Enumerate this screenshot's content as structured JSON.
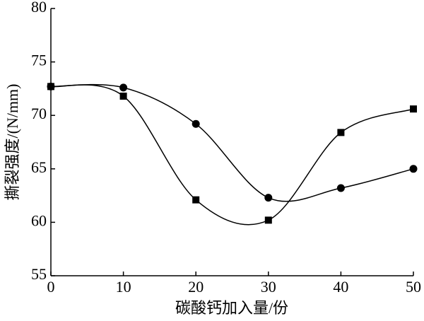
{
  "chart_data": {
    "type": "line",
    "x_label": "碳酸钙加入量/份",
    "y_label": "撕裂强度/(N/mm)",
    "x": [
      0,
      10,
      20,
      30,
      40,
      50
    ],
    "series": [
      {
        "color": "#000000",
        "marker": "square",
        "values": [
          72.7,
          71.8,
          62.1,
          60.2,
          68.4,
          70.6
        ]
      },
      {
        "color": "#000000",
        "marker": "circle",
        "values": [
          72.7,
          72.6,
          69.2,
          62.3,
          63.2,
          65.0
        ]
      }
    ],
    "xlim": [
      0,
      50
    ],
    "xticks": [
      0,
      10,
      20,
      30,
      40,
      50
    ],
    "ylim": [
      55,
      80
    ],
    "yticks": [
      55,
      60,
      65,
      70,
      75,
      80
    ],
    "grid": false
  }
}
